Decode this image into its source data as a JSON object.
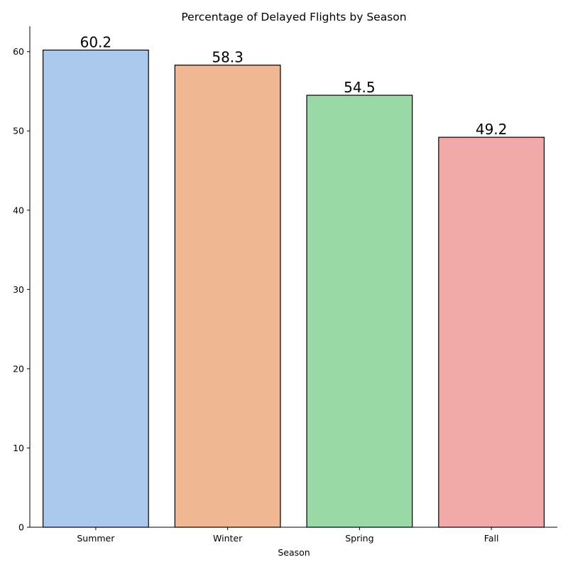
{
  "chart_data": {
    "type": "bar",
    "title": "Percentage of Delayed Flights by Season",
    "xlabel": "Season",
    "ylabel": "",
    "categories": [
      "Summer",
      "Winter",
      "Spring",
      "Fall"
    ],
    "values": [
      60.2,
      58.3,
      54.5,
      49.2
    ],
    "data_labels": [
      "60.2",
      "58.3",
      "54.5",
      "49.2"
    ],
    "colors": [
      "#abc9ed",
      "#f0b892",
      "#98d9a6",
      "#f2aaa9"
    ],
    "edge_color": "#000000",
    "ylim": [
      0,
      63.2
    ],
    "yticks": [
      0,
      10,
      20,
      30,
      40,
      50,
      60
    ],
    "ytick_labels": [
      "0",
      "10",
      "20",
      "30",
      "40",
      "50",
      "60"
    ],
    "grid": false,
    "legend": "none",
    "spines": [
      "left",
      "bottom"
    ]
  }
}
